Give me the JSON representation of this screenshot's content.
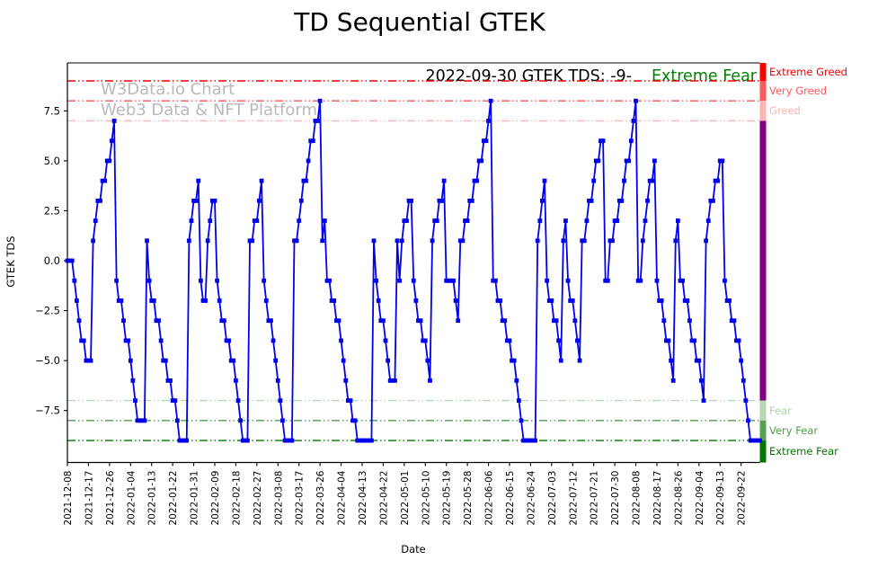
{
  "title": "TD Sequential GTEK",
  "subtitle": {
    "status_text": "2022-09-30 GTEK TDS: -9-",
    "sentiment_text": "Extreme Fear",
    "sentiment_color": "#008000"
  },
  "watermark": {
    "line1": "W3Data.io Chart",
    "line2": "Web3 Data & NFT Platform",
    "color": "#b9b9b9"
  },
  "zones": [
    {
      "label": "Extreme Greed",
      "value": 9,
      "line_color": "#f20000",
      "label_color": "#f20000"
    },
    {
      "label": "Very Greed",
      "value": 8,
      "line_color": "#ff5252",
      "label_color": "#ff5a5a"
    },
    {
      "label": "Greed",
      "value": 7,
      "line_color": "#ffb3b3",
      "label_color": "#ffb3b3"
    },
    {
      "label": "Fear",
      "value": -7,
      "line_color": "#b3d9b3",
      "label_color": "#a9d2a9"
    },
    {
      "label": "Very Fear",
      "value": -8,
      "line_color": "#4d9e4d",
      "label_color": "#4d9e4d"
    },
    {
      "label": "Extreme Fear",
      "value": -9,
      "line_color": "#007800",
      "label_color": "#007800"
    }
  ],
  "colorbar": {
    "mid_color": "#800080",
    "segment_colors": [
      "#ff0000",
      "#ff5a5a",
      "#ffb3b3",
      "#800080",
      "#b3d9b3",
      "#55a055",
      "#007800"
    ]
  },
  "chart_data": {
    "type": "line",
    "title": "TD Sequential GTEK",
    "xlabel": "Date",
    "ylabel": "GTEK TDS",
    "series_color": "#0000ee",
    "marker": "square",
    "grid": false,
    "legend": false,
    "ylim": [
      -10.1,
      9.9
    ],
    "yticks": [
      7.5,
      5.0,
      2.5,
      0.0,
      -2.5,
      -5.0,
      -7.5
    ],
    "ytick_labels": [
      "7.5",
      "5.0",
      "2.5",
      "0.0",
      "−2.5",
      "−5.0",
      "−7.5"
    ],
    "x_start_date": "2021-12-08",
    "x_end_date": "2022-09-30",
    "x_tick_interval_days": 9,
    "x_tick_labels": [
      "2021-12-08",
      "2021-12-17",
      "2021-12-26",
      "2022-01-04",
      "2022-01-13",
      "2022-01-22",
      "2022-01-31",
      "2022-02-09",
      "2022-02-18",
      "2022-02-27",
      "2022-03-08",
      "2022-03-17",
      "2022-03-26",
      "2022-04-04",
      "2022-04-13",
      "2022-04-22",
      "2022-05-01",
      "2022-05-10",
      "2022-05-19",
      "2022-05-28",
      "2022-06-06",
      "2022-06-15",
      "2022-06-24",
      "2022-07-03",
      "2022-07-12",
      "2022-07-21",
      "2022-07-30",
      "2022-08-08",
      "2022-08-17",
      "2022-08-26",
      "2022-09-04",
      "2022-09-13",
      "2022-09-22"
    ],
    "values": [
      0,
      0,
      0,
      -1,
      -2,
      -3,
      -4,
      -4,
      -5,
      -5,
      -5,
      1,
      2,
      3,
      3,
      4,
      4,
      5,
      5,
      6,
      7,
      -1,
      -2,
      -2,
      -3,
      -4,
      -4,
      -5,
      -6,
      -7,
      -8,
      -8,
      -8,
      -8,
      1,
      -1,
      -2,
      -2,
      -3,
      -3,
      -4,
      -5,
      -5,
      -6,
      -6,
      -7,
      -7,
      -8,
      -9,
      -9,
      -9,
      -9,
      1,
      2,
      3,
      3,
      4,
      -1,
      -2,
      -2,
      1,
      2,
      3,
      3,
      -1,
      -2,
      -3,
      -3,
      -4,
      -4,
      -5,
      -5,
      -6,
      -7,
      -8,
      -9,
      -9,
      -9,
      1,
      1,
      2,
      2,
      3,
      4,
      -1,
      -2,
      -3,
      -3,
      -4,
      -5,
      -6,
      -7,
      -8,
      -9,
      -9,
      -9,
      -9,
      1,
      1,
      2,
      3,
      4,
      4,
      5,
      6,
      6,
      7,
      7,
      8,
      1,
      2,
      -1,
      -1,
      -2,
      -2,
      -3,
      -3,
      -4,
      -5,
      -6,
      -7,
      -7,
      -8,
      -8,
      -9,
      -9,
      -9,
      -9,
      -9,
      -9,
      -9,
      1,
      -1,
      -2,
      -3,
      -3,
      -4,
      -5,
      -6,
      -6,
      -6,
      1,
      -1,
      1,
      2,
      2,
      3,
      3,
      -1,
      -2,
      -3,
      -3,
      -4,
      -4,
      -5,
      -6,
      1,
      2,
      2,
      3,
      3,
      4,
      -1,
      -1,
      -1,
      -1,
      -2,
      -3,
      1,
      1,
      2,
      2,
      3,
      3,
      4,
      4,
      5,
      5,
      6,
      6,
      7,
      8,
      -1,
      -1,
      -2,
      -2,
      -3,
      -3,
      -4,
      -4,
      -5,
      -5,
      -6,
      -7,
      -8,
      -9,
      -9,
      -9,
      -9,
      -9,
      -9,
      1,
      2,
      3,
      4,
      -1,
      -2,
      -2,
      -3,
      -3,
      -4,
      -5,
      1,
      2,
      -1,
      -2,
      -2,
      -3,
      -4,
      -5,
      1,
      1,
      2,
      3,
      3,
      4,
      5,
      5,
      6,
      6,
      -1,
      -1,
      1,
      1,
      2,
      2,
      3,
      3,
      4,
      5,
      5,
      6,
      7,
      8,
      -1,
      -1,
      1,
      2,
      3,
      4,
      4,
      5,
      -1,
      -2,
      -2,
      -3,
      -4,
      -4,
      -5,
      -6,
      1,
      2,
      -1,
      -1,
      -2,
      -2,
      -3,
      -4,
      -4,
      -5,
      -5,
      -6,
      -7,
      1,
      2,
      3,
      3,
      4,
      4,
      5,
      5,
      -1,
      -2,
      -2,
      -3,
      -3,
      -4,
      -4,
      -5,
      -6,
      -7,
      -8,
      -9,
      -9,
      -9,
      -9,
      -9
    ]
  }
}
